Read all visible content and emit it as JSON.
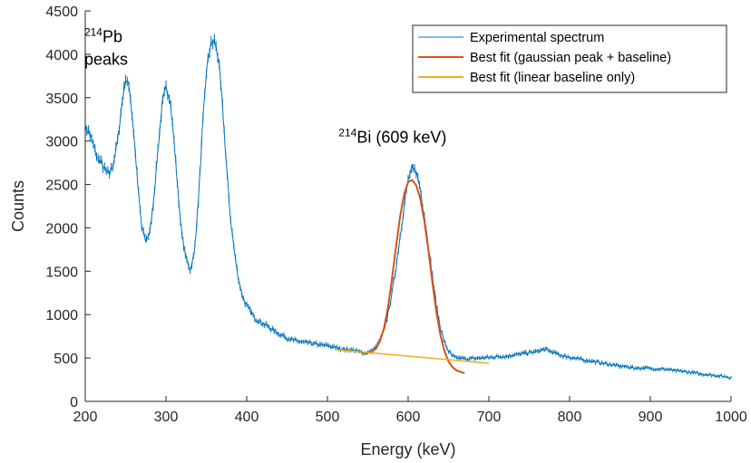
{
  "chart_data": {
    "type": "line",
    "xlabel": "Energy (keV)",
    "ylabel": "Counts",
    "xlim": [
      200,
      1000
    ],
    "ylim": [
      0,
      4500
    ],
    "x_ticks": [
      200,
      300,
      400,
      500,
      600,
      700,
      800,
      900,
      1000
    ],
    "y_ticks": [
      0,
      500,
      1000,
      1500,
      2000,
      2500,
      3000,
      3500,
      4000,
      4500
    ],
    "grid": false,
    "legend_position": "top-right",
    "annotations": [
      {
        "id": "pb",
        "sup": "214",
        "base": "Pb",
        "second_line": "peaks",
        "x": 255,
        "y": 4140
      },
      {
        "id": "bi",
        "sup": "214",
        "base": "Bi (609 keV)",
        "x": 570,
        "y": 2980
      }
    ],
    "series": [
      {
        "name": "Experimental spectrum",
        "color": "#0072BD",
        "style": "line-errorbar",
        "x": [
          200,
          205,
          210,
          215,
          220,
          225,
          230,
          235,
          240,
          245,
          250,
          255,
          260,
          265,
          270,
          275,
          280,
          285,
          290,
          295,
          300,
          305,
          310,
          315,
          320,
          325,
          330,
          335,
          340,
          345,
          350,
          355,
          360,
          365,
          370,
          375,
          380,
          385,
          390,
          395,
          400,
          410,
          420,
          430,
          440,
          450,
          460,
          470,
          480,
          490,
          500,
          510,
          520,
          530,
          540,
          550,
          555,
          560,
          565,
          570,
          575,
          580,
          585,
          590,
          595,
          600,
          605,
          610,
          615,
          620,
          625,
          630,
          635,
          640,
          645,
          650,
          655,
          660,
          665,
          670,
          680,
          690,
          700,
          710,
          720,
          730,
          740,
          750,
          760,
          765,
          770,
          780,
          790,
          800,
          810,
          820,
          830,
          840,
          850,
          860,
          870,
          880,
          890,
          900,
          910,
          920,
          930,
          940,
          950,
          960,
          970,
          980,
          990,
          1000
        ],
        "y": [
          3150,
          3100,
          2950,
          2800,
          2750,
          2650,
          2620,
          2750,
          3000,
          3400,
          3720,
          3600,
          3100,
          2500,
          2000,
          1850,
          1950,
          2350,
          2900,
          3400,
          3620,
          3500,
          3000,
          2400,
          1900,
          1650,
          1520,
          1700,
          2300,
          3100,
          3800,
          4100,
          4150,
          3950,
          3400,
          2700,
          2100,
          1700,
          1400,
          1200,
          1100,
          960,
          900,
          840,
          780,
          730,
          700,
          680,
          670,
          650,
          640,
          620,
          600,
          590,
          570,
          560,
          575,
          620,
          700,
          820,
          1000,
          1250,
          1550,
          1900,
          2250,
          2550,
          2680,
          2650,
          2450,
          2150,
          1800,
          1450,
          1100,
          850,
          680,
          580,
          520,
          500,
          495,
          490,
          495,
          500,
          505,
          515,
          520,
          535,
          545,
          560,
          575,
          590,
          600,
          560,
          530,
          510,
          490,
          475,
          460,
          440,
          425,
          410,
          400,
          385,
          385,
          380,
          375,
          370,
          355,
          345,
          335,
          320,
          310,
          300,
          290,
          275
        ]
      },
      {
        "name": "Best fit (gaussian peak + baseline)",
        "color": "#D95319",
        "style": "line",
        "x": [
          550,
          555,
          560,
          565,
          570,
          575,
          580,
          585,
          590,
          595,
          600,
          605,
          610,
          615,
          620,
          625,
          630,
          635,
          640,
          645,
          650,
          655,
          660,
          665,
          670
        ],
        "y": [
          560,
          573,
          607,
          689,
          842,
          1086,
          1417,
          1786,
          2129,
          2388,
          2529,
          2551,
          2490,
          2337,
          2083,
          1744,
          1374,
          1033,
          763,
          576,
          459,
          394,
          357,
          338,
          326
        ]
      },
      {
        "name": "Best fit (linear baseline only)",
        "color": "#EDB120",
        "style": "line",
        "x": [
          510,
          700
        ],
        "y": [
          595,
          440
        ]
      }
    ]
  }
}
